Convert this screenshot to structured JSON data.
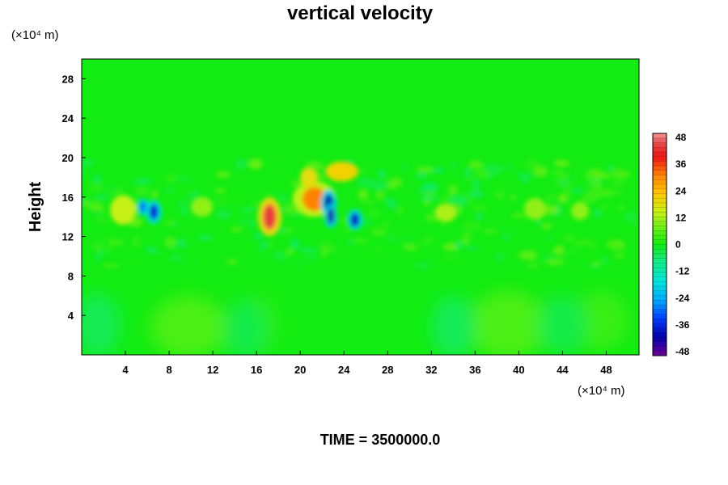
{
  "chart_data": {
    "type": "heatmap",
    "title": "vertical velocity",
    "ylabel": "Height",
    "xlabel": "",
    "x_unit": "(×10⁴ m)",
    "y_unit": "(×10⁴ m)",
    "xlim": [
      0,
      51
    ],
    "ylim": [
      0,
      30
    ],
    "x_ticks": [
      4,
      8,
      12,
      16,
      20,
      24,
      28,
      32,
      36,
      40,
      44,
      48
    ],
    "y_ticks": [
      4,
      8,
      12,
      16,
      20,
      24,
      28
    ],
    "colorbar": {
      "min": -48,
      "max": 48,
      "ticks": [
        48,
        36,
        24,
        12,
        0,
        -12,
        -24,
        -36,
        -48
      ]
    },
    "features": [
      {
        "x": 17.2,
        "y": 14.0,
        "w": 0.6,
        "h": 1.3,
        "value": 42
      },
      {
        "x": 21.3,
        "y": 15.8,
        "w": 1.1,
        "h": 1.2,
        "value": 30
      },
      {
        "x": 22.6,
        "y": 15.4,
        "w": 0.4,
        "h": 0.9,
        "value": -40
      },
      {
        "x": 22.8,
        "y": 14.1,
        "w": 0.3,
        "h": 0.8,
        "value": -42
      },
      {
        "x": 25.0,
        "y": 13.7,
        "w": 0.4,
        "h": 0.7,
        "value": -38
      },
      {
        "x": 6.6,
        "y": 14.5,
        "w": 0.4,
        "h": 0.8,
        "value": -36
      },
      {
        "x": 5.6,
        "y": 15.0,
        "w": 0.3,
        "h": 0.6,
        "value": -28
      },
      {
        "x": 23.8,
        "y": 18.6,
        "w": 1.5,
        "h": 1.0,
        "value": 20
      },
      {
        "x": 20.8,
        "y": 18.0,
        "w": 0.8,
        "h": 1.0,
        "value": 18
      },
      {
        "x": 3.8,
        "y": 14.7,
        "w": 1.2,
        "h": 1.5,
        "value": 14
      },
      {
        "x": 11.0,
        "y": 15.0,
        "w": 1.0,
        "h": 1.0,
        "value": 10
      },
      {
        "x": 33.3,
        "y": 14.4,
        "w": 1.0,
        "h": 0.9,
        "value": 12
      },
      {
        "x": 41.5,
        "y": 14.8,
        "w": 1.0,
        "h": 1.1,
        "value": 10
      },
      {
        "x": 45.6,
        "y": 14.6,
        "w": 0.8,
        "h": 0.9,
        "value": 10
      },
      {
        "x": 9.8,
        "y": 2.8,
        "w": 3.5,
        "h": 3.2,
        "value": 6
      },
      {
        "x": 39.0,
        "y": 3.0,
        "w": 3.5,
        "h": 3.5,
        "value": 6
      },
      {
        "x": 47.5,
        "y": 3.5,
        "w": 2.5,
        "h": 3.0,
        "value": 4
      },
      {
        "x": 16.0,
        "y": 3.0,
        "w": 2.0,
        "h": 3.0,
        "value": 3
      },
      {
        "x": 1.5,
        "y": 3.0,
        "w": 2.0,
        "h": 3.2,
        "value": -5
      },
      {
        "x": 15.0,
        "y": 2.5,
        "w": 2.0,
        "h": 3.0,
        "value": -4
      },
      {
        "x": 34.0,
        "y": 2.8,
        "w": 2.0,
        "h": 3.2,
        "value": -5
      },
      {
        "x": 44.0,
        "y": 3.0,
        "w": 2.2,
        "h": 3.0,
        "value": -4
      }
    ],
    "footer": "TIME = 3500000.0"
  }
}
